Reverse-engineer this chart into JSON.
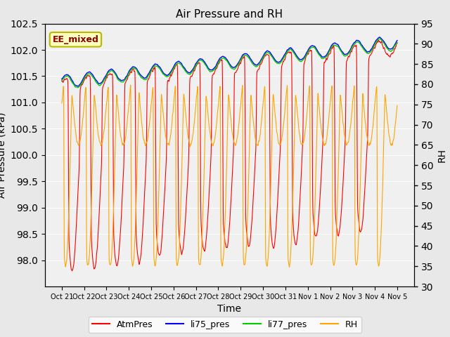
{
  "title": "Air Pressure and RH",
  "xlabel": "Time",
  "ylabel_left": "Air Pressure (kPa)",
  "ylabel_right": "RH",
  "ylim_left": [
    97.5,
    102.5
  ],
  "ylim_right": [
    30,
    95
  ],
  "yticks_left": [
    98.0,
    98.5,
    99.0,
    99.5,
    100.0,
    100.5,
    101.0,
    101.5,
    102.0,
    102.5
  ],
  "yticks_right": [
    30,
    35,
    40,
    45,
    50,
    55,
    60,
    65,
    70,
    75,
    80,
    85,
    90,
    95
  ],
  "bg_color": "#e8e8e8",
  "plot_bg_color": "#f0f0f0",
  "annotation_text": "EE_mixed",
  "annotation_color": "#8b0000",
  "annotation_bg": "#ffffc0",
  "annotation_border": "#b8b800",
  "colors": {
    "AtmPres": "#ff0000",
    "li75_pres": "#0000ff",
    "li77_pres": "#00cc00",
    "RH": "#ffa500"
  },
  "legend_labels": [
    "AtmPres",
    "li75_pres",
    "li77_pres",
    "RH"
  ],
  "x_tick_labels": [
    "Oct 21",
    "Oct 22",
    "Oct 23",
    "Oct 24",
    "Oct 25",
    "Oct 26",
    "Oct 27",
    "Oct 28",
    "Oct 29",
    "Oct 30",
    "Oct 31",
    "Nov 1",
    "Nov 2",
    "Nov 3",
    "Nov 4",
    "Nov 5"
  ],
  "n_points": 3600
}
